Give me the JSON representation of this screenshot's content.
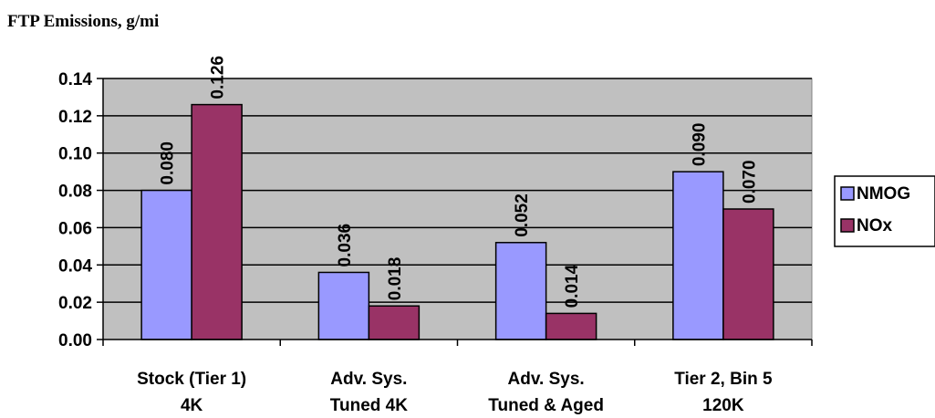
{
  "chart_data": {
    "type": "bar",
    "title": "FTP Emissions, g/mi",
    "categories": [
      [
        "Stock (Tier 1)",
        "4K"
      ],
      [
        "Adv. Sys.",
        "Tuned 4K"
      ],
      [
        "Adv. Sys.",
        "Tuned & Aged"
      ],
      [
        "Tier 2, Bin 5",
        "120K"
      ]
    ],
    "series": [
      {
        "name": "NMOG",
        "values": [
          0.08,
          0.036,
          0.052,
          0.09
        ],
        "labels": [
          "0.080",
          "0.036",
          "0.052",
          "0.090"
        ],
        "color": "#9999FF"
      },
      {
        "name": "NOx",
        "values": [
          0.126,
          0.018,
          0.014,
          0.07
        ],
        "labels": [
          "0.126",
          "0.018",
          "0.014",
          "0.070"
        ],
        "color": "#993366"
      }
    ],
    "ylim": [
      0,
      0.14
    ],
    "yticks": [
      "0.00",
      "0.02",
      "0.04",
      "0.06",
      "0.08",
      "0.10",
      "0.12",
      "0.14"
    ],
    "grid": true,
    "plot_background": "#C0C0C0",
    "legend_position": "right"
  }
}
